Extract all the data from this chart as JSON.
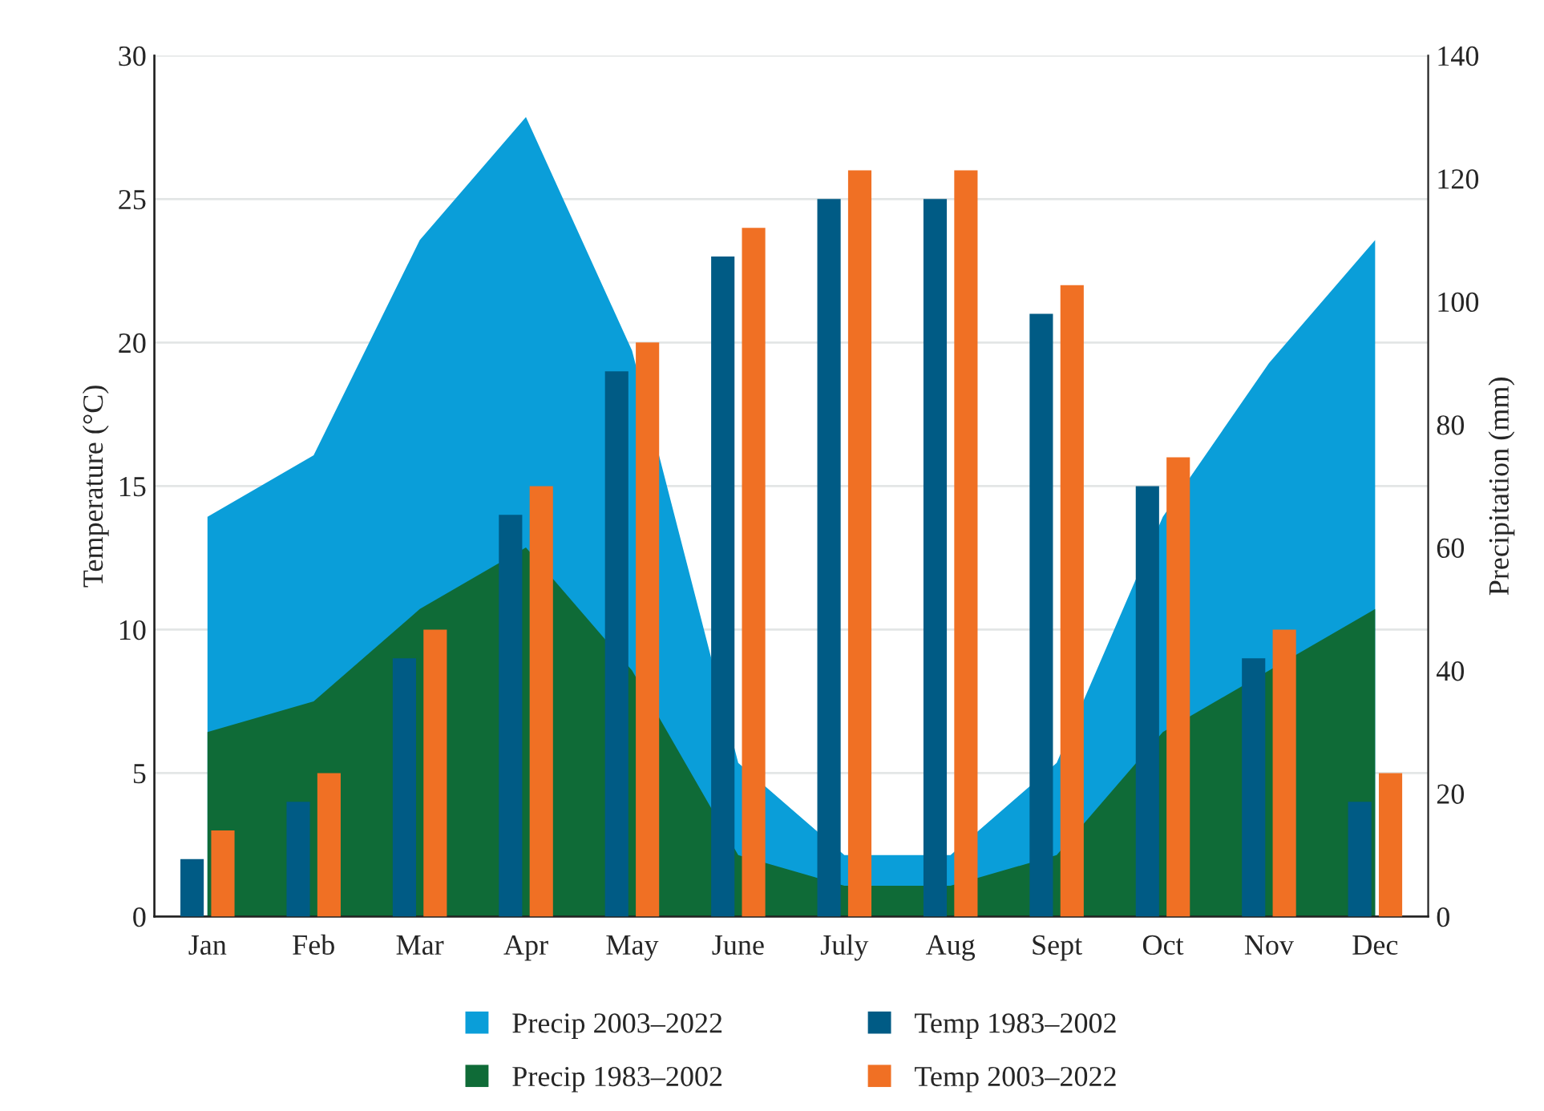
{
  "chart_data": {
    "type": "bar",
    "categories": [
      "Jan",
      "Feb",
      "Mar",
      "Apr",
      "May",
      "June",
      "July",
      "Aug",
      "Sept",
      "Oct",
      "Nov",
      "Dec"
    ],
    "ylabel": "Temperature (°C)",
    "y2label": "Precipitation (mm)",
    "ylim": [
      0,
      30
    ],
    "yticks": [
      0,
      5,
      10,
      15,
      20,
      25,
      30
    ],
    "y2lim": [
      0,
      140
    ],
    "y2ticks": [
      0,
      20,
      40,
      60,
      80,
      100,
      120,
      140
    ],
    "grid": "y",
    "legend": "bottom",
    "series": [
      {
        "name": "Precip 2003–2022",
        "type": "area",
        "axis": "y2",
        "color": "#0a9ed9",
        "values": [
          65,
          75,
          110,
          130,
          92,
          25,
          10,
          10,
          25,
          65,
          90,
          110
        ]
      },
      {
        "name": "Precip 1983–2002",
        "type": "area",
        "axis": "y2",
        "color": "#0f6b37",
        "values": [
          30,
          35,
          50,
          60,
          40,
          10,
          5,
          5,
          10,
          30,
          40,
          50
        ]
      },
      {
        "name": "Temp 1983–2002",
        "color": "#005b85",
        "values": [
          2,
          4,
          9,
          14,
          19,
          23,
          25,
          25,
          21,
          15,
          9,
          4
        ]
      },
      {
        "name": "Temp 2003–2022",
        "color": "#f07024",
        "values": [
          3,
          5,
          10,
          15,
          20,
          24,
          26,
          26,
          22,
          16,
          10,
          5
        ]
      }
    ]
  }
}
